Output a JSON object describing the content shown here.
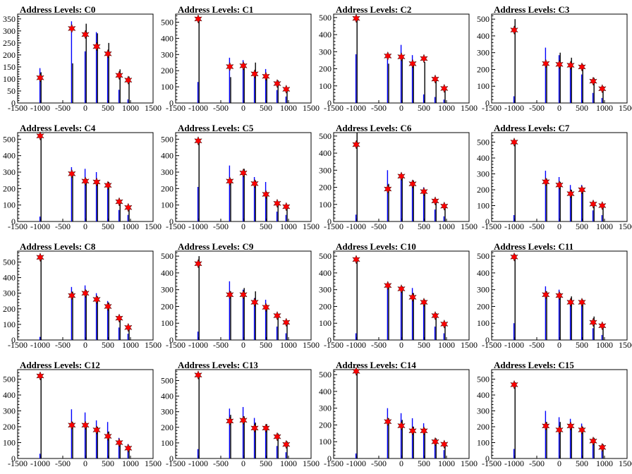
{
  "canvas": {
    "background": "#ffffff"
  },
  "style": {
    "histogram_a_color": "#0000ff",
    "histogram_b_color": "#000000",
    "marker_color": "#ff0000",
    "marker_shape": "star"
  },
  "chart_data": [
    {
      "type": "bar",
      "title": "Address Levels: C0",
      "xlim": [
        -1500,
        1500
      ],
      "ylim": [
        0,
        370
      ],
      "xticks": [
        "-1500",
        "-1000",
        "-500",
        "0",
        "500",
        "1000",
        "1500"
      ],
      "yticks": [
        "0",
        "50",
        "100",
        "150",
        "200",
        "250",
        "300",
        "350"
      ],
      "peaks_x": [
        -1000,
        -300,
        0,
        250,
        500,
        750,
        950
      ],
      "series": [
        {
          "values": [
            128,
            165,
            330,
            290,
            250,
            140,
            110
          ]
        },
        {
          "values": [
            145,
            340,
            215,
            295,
            210,
            55,
            15
          ]
        }
      ],
      "markers": [
        105,
        310,
        285,
        235,
        205,
        115,
        95
      ]
    },
    {
      "type": "bar",
      "title": "Address Levels: C1",
      "xlim": [
        -1500,
        1500
      ],
      "ylim": [
        0,
        550
      ],
      "xticks": [
        "-1500",
        "-1000",
        "-500",
        "0",
        "500",
        "1000",
        "1500"
      ],
      "yticks": [
        "0",
        "100",
        "200",
        "300",
        "400",
        "500"
      ],
      "peaks_x": [
        -1000,
        -300,
        0,
        250,
        500,
        750,
        950
      ],
      "series": [
        {
          "values": [
            520,
            160,
            245,
            250,
            170,
            140,
            90
          ]
        },
        {
          "values": [
            130,
            280,
            265,
            160,
            210,
            80,
            40
          ]
        }
      ],
      "markers": [
        520,
        225,
        230,
        180,
        165,
        120,
        85
      ]
    },
    {
      "type": "bar",
      "title": "Address Levels: C2",
      "xlim": [
        -1500,
        1500
      ],
      "ylim": [
        0,
        520
      ],
      "xticks": [
        "-1500",
        "-1000",
        "-500",
        "0",
        "500",
        "1000",
        "1500"
      ],
      "yticks": [
        "0",
        "100",
        "200",
        "300",
        "400",
        "500"
      ],
      "peaks_x": [
        -1000,
        -300,
        0,
        250,
        500,
        750,
        950
      ],
      "series": [
        {
          "values": [
            500,
            230,
            270,
            240,
            240,
            150,
            95
          ]
        },
        {
          "values": [
            285,
            290,
            340,
            280,
            50,
            35,
            20
          ]
        }
      ],
      "markers": [
        495,
        275,
        270,
        230,
        260,
        140,
        85
      ]
    },
    {
      "type": "bar",
      "title": "Address Levels: C3",
      "xlim": [
        -1500,
        1500
      ],
      "ylim": [
        0,
        530
      ],
      "xticks": [
        "-1500",
        "-1000",
        "-500",
        "0",
        "500",
        "1000",
        "1500"
      ],
      "yticks": [
        "0",
        "100",
        "200",
        "300",
        "400",
        "500"
      ],
      "peaks_x": [
        -1000,
        -300,
        0,
        250,
        500,
        750,
        950
      ],
      "series": [
        {
          "values": [
            500,
            230,
            300,
            270,
            230,
            150,
            100
          ]
        },
        {
          "values": [
            40,
            330,
            285,
            230,
            170,
            60,
            30
          ]
        }
      ],
      "markers": [
        435,
        235,
        230,
        225,
        215,
        130,
        85
      ]
    },
    {
      "type": "bar",
      "title": "Address Levels: C4",
      "xlim": [
        -1500,
        1500
      ],
      "ylim": [
        0,
        540
      ],
      "xticks": [
        "-1500",
        "-1000",
        "-500",
        "0",
        "500",
        "1000",
        "1500"
      ],
      "yticks": [
        "0",
        "100",
        "200",
        "300",
        "400",
        "500"
      ],
      "peaks_x": [
        -1000,
        -300,
        0,
        250,
        500,
        750,
        950
      ],
      "series": [
        {
          "values": [
            520,
            300,
            260,
            250,
            240,
            130,
            90
          ]
        },
        {
          "values": [
            30,
            330,
            320,
            300,
            200,
            70,
            40
          ]
        }
      ],
      "markers": [
        520,
        290,
        245,
        240,
        220,
        120,
        85
      ]
    },
    {
      "type": "bar",
      "title": "Address Levels: C5",
      "xlim": [
        -1500,
        1500
      ],
      "ylim": [
        0,
        540
      ],
      "xticks": [
        "-1500",
        "-1000",
        "-500",
        "0",
        "500",
        "1000",
        "1500"
      ],
      "yticks": [
        "0",
        "100",
        "200",
        "300",
        "400",
        "500"
      ],
      "peaks_x": [
        -1000,
        -300,
        0,
        250,
        500,
        750,
        950
      ],
      "series": [
        {
          "values": [
            490,
            260,
            320,
            250,
            180,
            120,
            100
          ]
        },
        {
          "values": [
            210,
            340,
            300,
            270,
            240,
            60,
            40
          ]
        }
      ],
      "markers": [
        490,
        245,
        295,
        230,
        165,
        110,
        90
      ]
    },
    {
      "type": "bar",
      "title": "Address Levels: C6",
      "xlim": [
        -1500,
        1500
      ],
      "ylim": [
        0,
        520
      ],
      "xticks": [
        "-1500",
        "-1000",
        "-500",
        "0",
        "500",
        "1000",
        "1500"
      ],
      "yticks": [
        "0",
        "100",
        "200",
        "300",
        "400",
        "500"
      ],
      "peaks_x": [
        -1000,
        -300,
        0,
        250,
        500,
        750,
        950
      ],
      "series": [
        {
          "values": [
            520,
            220,
            270,
            240,
            180,
            130,
            95
          ]
        },
        {
          "values": [
            40,
            300,
            280,
            240,
            200,
            70,
            30
          ]
        }
      ],
      "markers": [
        450,
        190,
        265,
        220,
        175,
        120,
        90
      ]
    },
    {
      "type": "bar",
      "title": "Address Levels: C7",
      "xlim": [
        -1500,
        1500
      ],
      "ylim": [
        0,
        560
      ],
      "xticks": [
        "-1500",
        "-1000",
        "-500",
        "0",
        "500",
        "1000",
        "1500"
      ],
      "yticks": [
        "0",
        "100",
        "200",
        "300",
        "400",
        "500"
      ],
      "peaks_x": [
        -1000,
        -300,
        0,
        250,
        500,
        750,
        950
      ],
      "series": [
        {
          "values": [
            510,
            270,
            250,
            200,
            210,
            120,
            105
          ]
        },
        {
          "values": [
            40,
            320,
            280,
            230,
            230,
            70,
            40
          ]
        }
      ],
      "markers": [
        500,
        250,
        230,
        175,
        200,
        110,
        100
      ]
    },
    {
      "type": "bar",
      "title": "Address Levels: C8",
      "xlim": [
        -1500,
        1500
      ],
      "ylim": [
        0,
        570
      ],
      "xticks": [
        "-1500",
        "-1000",
        "-500",
        "0",
        "500",
        "1000",
        "1500"
      ],
      "yticks": [
        "0",
        "100",
        "200",
        "300",
        "400",
        "500"
      ],
      "peaks_x": [
        -1000,
        -300,
        0,
        250,
        500,
        750,
        950
      ],
      "series": [
        {
          "values": [
            530,
            310,
            320,
            280,
            240,
            150,
            90
          ]
        },
        {
          "values": [
            20,
            340,
            350,
            300,
            250,
            80,
            40
          ]
        }
      ],
      "markers": [
        530,
        285,
        300,
        260,
        215,
        140,
        80
      ]
    },
    {
      "type": "bar",
      "title": "Address Levels: C9",
      "xlim": [
        -1500,
        1500
      ],
      "ylim": [
        0,
        530
      ],
      "xticks": [
        "-1500",
        "-1000",
        "-500",
        "0",
        "500",
        "1000",
        "1500"
      ],
      "yticks": [
        "0",
        "100",
        "200",
        "300",
        "400",
        "500"
      ],
      "peaks_x": [
        -1000,
        -300,
        0,
        250,
        500,
        750,
        950
      ],
      "series": [
        {
          "values": [
            500,
            290,
            310,
            290,
            210,
            150,
            110
          ]
        },
        {
          "values": [
            50,
            350,
            300,
            250,
            240,
            80,
            40
          ]
        }
      ],
      "markers": [
        455,
        270,
        270,
        225,
        195,
        145,
        105
      ]
    },
    {
      "type": "bar",
      "title": "Address Levels: C10",
      "xlim": [
        -1500,
        1500
      ],
      "ylim": [
        0,
        530
      ],
      "xticks": [
        "-1500",
        "-1000",
        "-500",
        "0",
        "500",
        "1000",
        "1500"
      ],
      "yticks": [
        "0",
        "100",
        "200",
        "300",
        "400",
        "500"
      ],
      "peaks_x": [
        -1000,
        -300,
        0,
        250,
        500,
        750,
        950
      ],
      "series": [
        {
          "values": [
            480,
            320,
            320,
            280,
            240,
            160,
            100
          ]
        },
        {
          "values": [
            40,
            340,
            310,
            310,
            230,
            80,
            40
          ]
        }
      ],
      "markers": [
        480,
        325,
        305,
        255,
        225,
        145,
        95
      ]
    },
    {
      "type": "bar",
      "title": "Address Levels: C11",
      "xlim": [
        -1500,
        1500
      ],
      "ylim": [
        0,
        530
      ],
      "xticks": [
        "-1500",
        "-1000",
        "-500",
        "0",
        "500",
        "1000",
        "1500"
      ],
      "yticks": [
        "0",
        "100",
        "200",
        "300",
        "400",
        "500"
      ],
      "peaks_x": [
        -1000,
        -300,
        0,
        250,
        500,
        750,
        950
      ],
      "series": [
        {
          "values": [
            510,
            290,
            280,
            260,
            240,
            140,
            90
          ]
        },
        {
          "values": [
            100,
            320,
            300,
            240,
            220,
            70,
            30
          ]
        }
      ],
      "markers": [
        495,
        270,
        265,
        225,
        225,
        105,
        85
      ]
    },
    {
      "type": "bar",
      "title": "Address Levels: C12",
      "xlim": [
        -1500,
        1500
      ],
      "ylim": [
        0,
        560
      ],
      "xticks": [
        "-1500",
        "-1000",
        "-500",
        "0",
        "500",
        "1000",
        "1500"
      ],
      "yticks": [
        "0",
        "100",
        "200",
        "300",
        "400",
        "500"
      ],
      "peaks_x": [
        -1000,
        -300,
        0,
        250,
        500,
        750,
        950
      ],
      "series": [
        {
          "values": [
            520,
            230,
            220,
            200,
            170,
            110,
            80
          ]
        },
        {
          "values": [
            30,
            310,
            290,
            240,
            230,
            130,
            90
          ]
        }
      ],
      "markers": [
        520,
        210,
        210,
        180,
        140,
        100,
        65
      ]
    },
    {
      "type": "bar",
      "title": "Address Levels: C13",
      "xlim": [
        -1500,
        1500
      ],
      "ylim": [
        0,
        570
      ],
      "xticks": [
        "-1500",
        "-1000",
        "-500",
        "0",
        "500",
        "1000",
        "1500"
      ],
      "yticks": [
        "0",
        "100",
        "200",
        "300",
        "400",
        "500"
      ],
      "peaks_x": [
        -1000,
        -300,
        0,
        250,
        500,
        750,
        950
      ],
      "series": [
        {
          "values": [
            540,
            280,
            270,
            230,
            220,
            160,
            110
          ]
        },
        {
          "values": [
            60,
            320,
            330,
            260,
            210,
            80,
            40
          ]
        }
      ],
      "markers": [
        535,
        240,
        245,
        195,
        195,
        140,
        90
      ]
    },
    {
      "type": "bar",
      "title": "Address Levels: C14",
      "xlim": [
        -1500,
        1500
      ],
      "ylim": [
        0,
        530
      ],
      "xticks": [
        "-1500",
        "-1000",
        "-500",
        "0",
        "500",
        "1000",
        "1500"
      ],
      "yticks": [
        "0",
        "100",
        "200",
        "300",
        "400",
        "500"
      ],
      "peaks_x": [
        -1000,
        -300,
        0,
        250,
        500,
        750,
        950
      ],
      "series": [
        {
          "values": [
            520,
            240,
            230,
            190,
            180,
            120,
            90
          ]
        },
        {
          "values": [
            30,
            300,
            270,
            240,
            210,
            100,
            50
          ]
        }
      ],
      "markers": [
        520,
        220,
        195,
        165,
        165,
        100,
        85
      ]
    },
    {
      "type": "bar",
      "title": "Address Levels: C15",
      "xlim": [
        -1500,
        1500
      ],
      "ylim": [
        0,
        560
      ],
      "xticks": [
        "-1500",
        "-1000",
        "-500",
        "0",
        "500",
        "1000",
        "1500"
      ],
      "yticks": [
        "0",
        "100",
        "200",
        "300",
        "400",
        "500"
      ],
      "peaks_x": [
        -1000,
        -300,
        0,
        250,
        500,
        750,
        950
      ],
      "series": [
        {
          "values": [
            480,
            230,
            230,
            210,
            200,
            130,
            90
          ]
        },
        {
          "values": [
            60,
            300,
            260,
            250,
            220,
            90,
            50
          ]
        }
      ],
      "markers": [
        465,
        205,
        180,
        205,
        180,
        110,
        70
      ]
    }
  ]
}
